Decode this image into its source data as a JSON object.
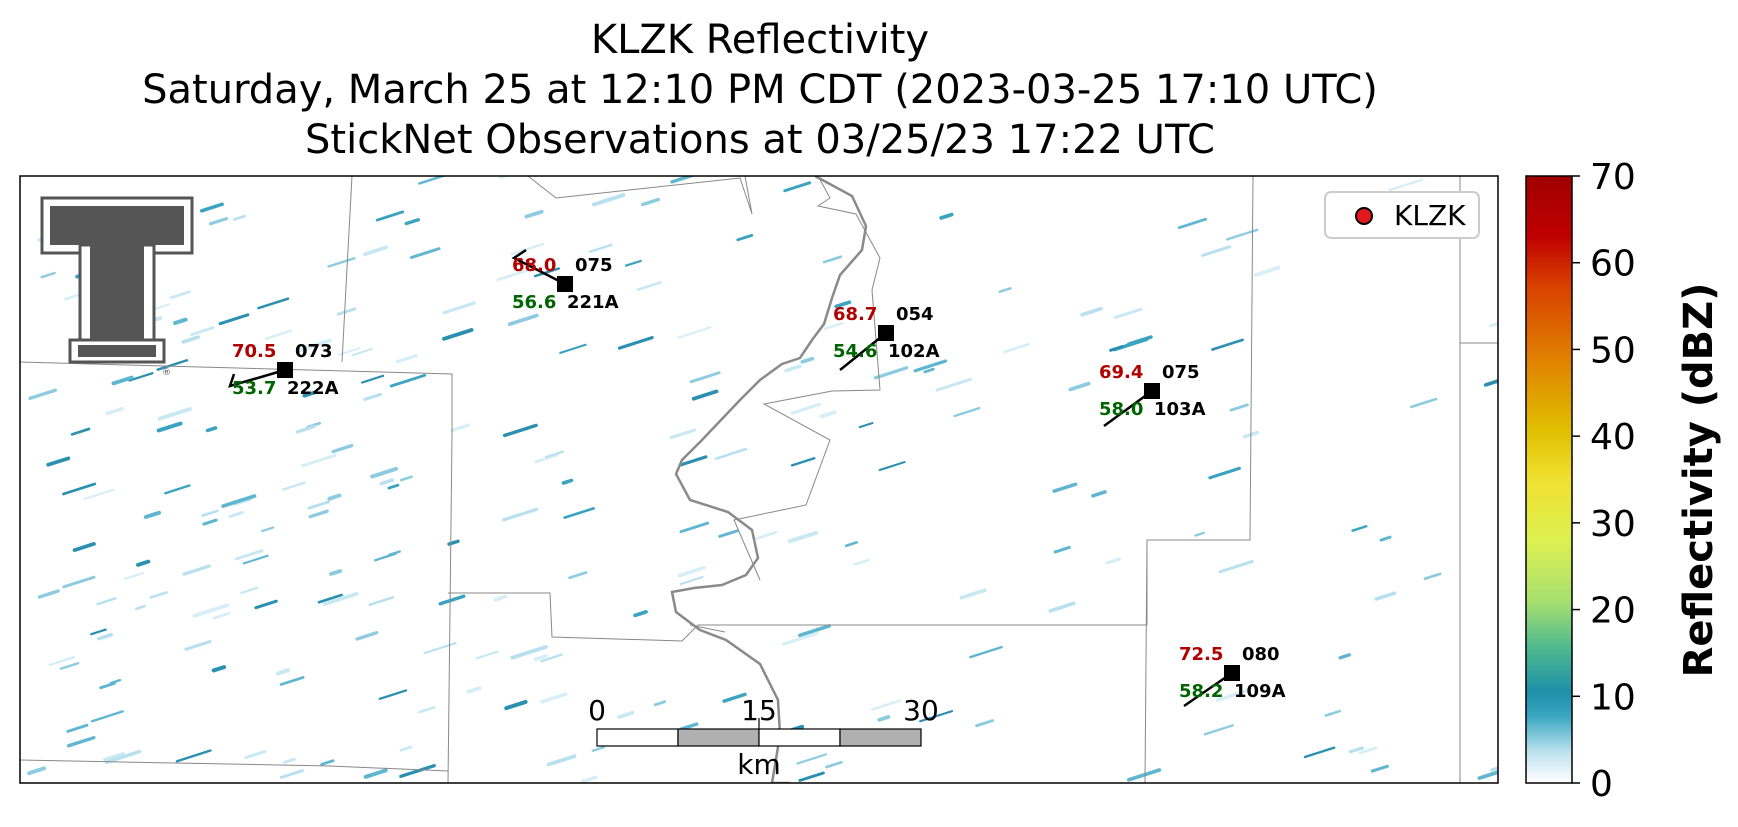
{
  "title": {
    "line1": "KLZK Reflectivity",
    "line2": "Saturday, March 25 at 12:10 PM CDT (2023-03-25 17:10 UTC)",
    "line3": "StickNet Observations at 03/25/23 17:22 UTC"
  },
  "legend": {
    "label": "KLZK",
    "marker_color": "#e31a1c"
  },
  "colorbar": {
    "label": "Reflectivity (dBZ)",
    "ticks": [
      "0",
      "10",
      "20",
      "30",
      "40",
      "50",
      "60",
      "70"
    ],
    "range": [
      0,
      70
    ]
  },
  "scale_bar": {
    "labels": [
      "0",
      "15",
      "30"
    ],
    "unit": "km"
  },
  "stations": [
    {
      "id": "222A",
      "temp": "70.5",
      "dew": "53.7",
      "dir": "073"
    },
    {
      "id": "221A",
      "temp": "68.0",
      "dew": "56.6",
      "dir": "075"
    },
    {
      "id": "102A",
      "temp": "68.7",
      "dew": "54.6",
      "dir": "054"
    },
    {
      "id": "103A",
      "temp": "69.4",
      "dew": "58.0",
      "dir": "075"
    },
    {
      "id": "109A",
      "temp": "72.5",
      "dew": "58.2",
      "dir": "080"
    }
  ],
  "logo": {
    "name": "texas-tech-double-t-logo",
    "text": "T"
  }
}
